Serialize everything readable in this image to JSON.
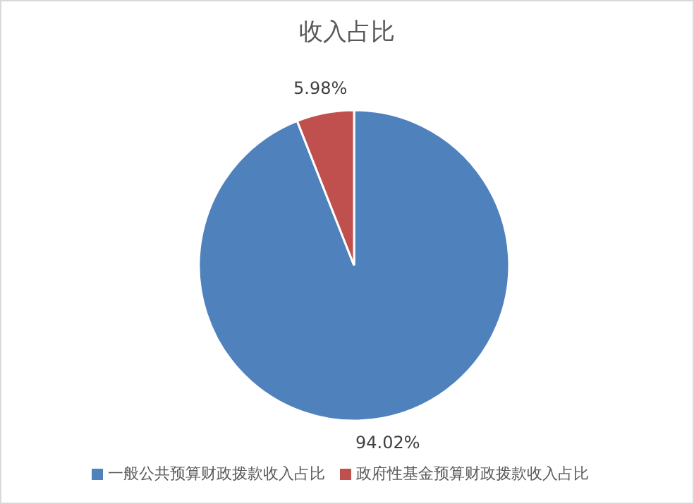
{
  "chart_data": {
    "type": "pie",
    "title": "收入占比",
    "categories": [
      "一般公共预算财政拨款收入占比",
      "政府性基金预算财政拨款收入占比"
    ],
    "values": [
      94.02,
      5.98
    ],
    "colors": [
      "#4f81bd",
      "#c0504d"
    ],
    "value_labels": [
      "94.02%",
      "5.98%"
    ],
    "legend": "bottom"
  }
}
